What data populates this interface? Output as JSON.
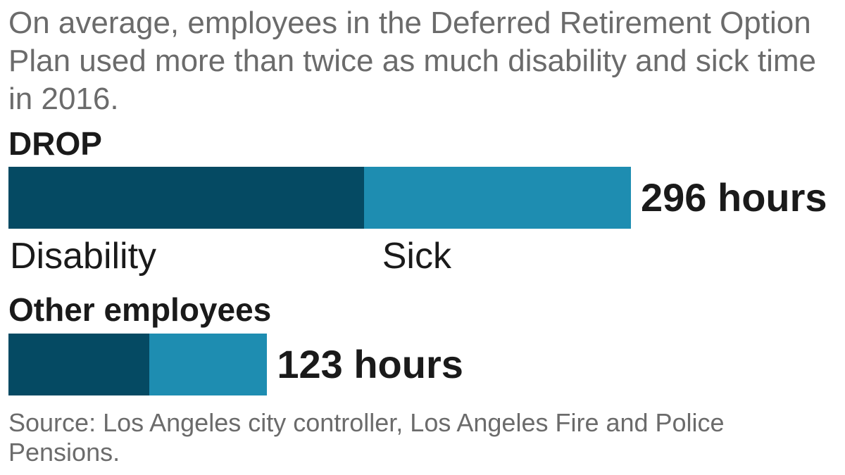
{
  "subtitle": "On average, employees in the Deferred Retirement Option Plan used more than twice as much disability and sick time in 2016.",
  "source": "Source: Los Angeles city controller, Los Angeles Fire and Police Pensions.",
  "colors": {
    "disability": "#054a63",
    "sick": "#1e8db1"
  },
  "chart_data": {
    "type": "bar",
    "orientation": "horizontal",
    "stacked": true,
    "categories": [
      "DROP",
      "Other employees"
    ],
    "series": [
      {
        "name": "Disability",
        "values": [
          169,
          67
        ]
      },
      {
        "name": "Sick",
        "values": [
          127,
          56
        ]
      }
    ],
    "totals": [
      296,
      123
    ],
    "total_labels": [
      "296 hours",
      "123 hours"
    ],
    "xlim": [
      0,
      296
    ]
  }
}
